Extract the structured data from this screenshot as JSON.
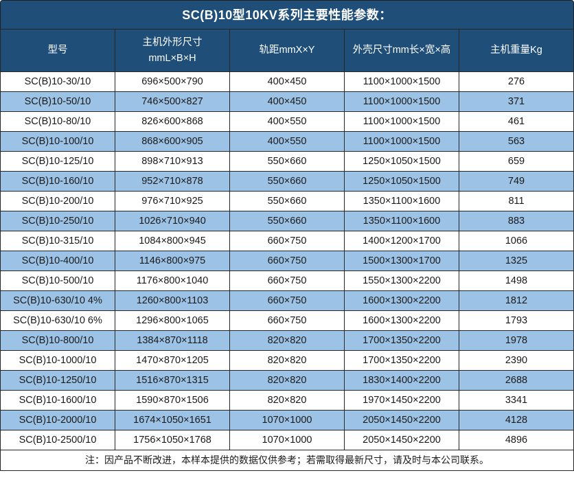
{
  "title": "SC(B)10型10KV系列主要性能参数：",
  "colors": {
    "header_bg": "#1f4e79",
    "header_text": "#ffffff",
    "row_alt_bg": "#9cc2e5",
    "row_bg": "#ffffff",
    "border": "#262626",
    "body_text": "#1a1a1a"
  },
  "table": {
    "columns": [
      {
        "label": "型号"
      },
      {
        "label_line1": "主机外形尺寸",
        "label_line2": "mmL×B×H"
      },
      {
        "label": "轨距mmX×Y"
      },
      {
        "label": "外壳尺寸mm长×宽×高"
      },
      {
        "label": "主机重量Kg"
      }
    ],
    "rows": [
      [
        "SC(B)10-30/10",
        "696×500×790",
        "400×450",
        "1100×1000×1500",
        "276"
      ],
      [
        "SC(B)10-50/10",
        "746×500×827",
        "400×450",
        "1100×1000×1500",
        "371"
      ],
      [
        "SC(B)10-80/10",
        "826×600×868",
        "400×550",
        "1100×1000×1500",
        "461"
      ],
      [
        "SC(B)10-100/10",
        "868×600×905",
        "400×550",
        "1100×1000×1500",
        "563"
      ],
      [
        "SC(B)10-125/10",
        "898×710×913",
        "550×660",
        "1250×1050×1500",
        "659"
      ],
      [
        "SC(B)10-160/10",
        "952×710×878",
        "550×660",
        "1250×1050×1500",
        "749"
      ],
      [
        "SC(B)10-200/10",
        "976×710×925",
        "550×660",
        "1350×1100×1600",
        "811"
      ],
      [
        "SC(B)10-250/10",
        "1026×710×940",
        "550×660",
        "1350×1100×1600",
        "883"
      ],
      [
        "SC(B)10-315/10",
        "1084×800×945",
        "660×750",
        "1400×1200×1700",
        "1066"
      ],
      [
        "SC(B)10-400/10",
        "1146×800×975",
        "660×750",
        "1500×1300×1700",
        "1325"
      ],
      [
        "SC(B)10-500/10",
        "1176×800×1040",
        "660×750",
        "1550×1300×2200",
        "1498"
      ],
      [
        "SC(B)10-630/10 4%",
        "1260×800×1103",
        "660×750",
        "1600×1300×2200",
        "1812"
      ],
      [
        "SC(B)10-630/10 6%",
        "1296×800×1065",
        "660×750",
        "1600×1300×2200",
        "1793"
      ],
      [
        "SC(B)10-800/10",
        "1384×870×1118",
        "820×820",
        "1700×1350×2200",
        "1978"
      ],
      [
        "SC(B)10-1000/10",
        "1470×870×1205",
        "820×820",
        "1700×1350×2200",
        "2390"
      ],
      [
        "SC(B)10-1250/10",
        "1516×870×1315",
        "820×820",
        "1830×1400×2200",
        "2688"
      ],
      [
        "SC(B)10-1600/10",
        "1590×870×1506",
        "820×820",
        "1970×1450×2200",
        "3341"
      ],
      [
        "SC(B)10-2000/10",
        "1674×1050×1651",
        "1070×1000",
        "2050×1450×2200",
        "4128"
      ],
      [
        "SC(B)10-2500/10",
        "1756×1050×1768",
        "1070×1000",
        "2050×1450×2200",
        "4896"
      ]
    ]
  },
  "note": "注：因产品不断改进，本样本提供的数据仅供参考；若需取得最新尺寸，请及时与本公司联系。"
}
